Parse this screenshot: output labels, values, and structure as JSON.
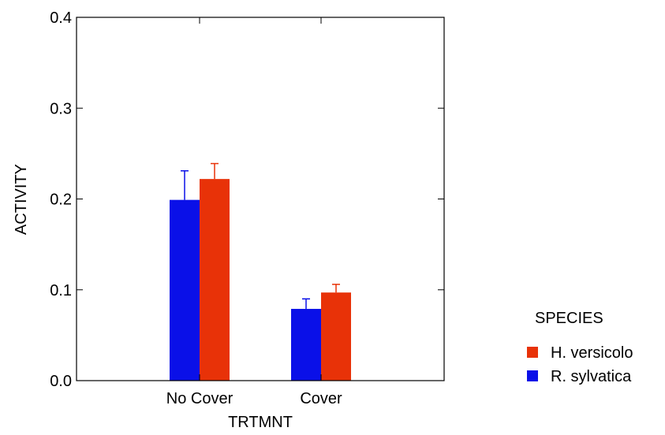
{
  "chart_data": {
    "type": "bar",
    "title": "",
    "xlabel": "TRTMNT",
    "ylabel": "ACTIVITY",
    "categories": [
      "No Cover",
      "Cover"
    ],
    "ylim": [
      0.0,
      0.4
    ],
    "yticks": [
      "0.0",
      "0.1",
      "0.2",
      "0.3",
      "0.4"
    ],
    "grid": false,
    "legend_title": "SPECIES",
    "legend_position": "right",
    "series": [
      {
        "name": "R. sylvatica",
        "color": "#0a10e8",
        "values": [
          0.199,
          0.079
        ],
        "error": [
          0.032,
          0.011
        ]
      },
      {
        "name": "H. versicolo",
        "color": "#e83208",
        "values": [
          0.222,
          0.097
        ],
        "error": [
          0.017,
          0.009
        ]
      }
    ]
  }
}
